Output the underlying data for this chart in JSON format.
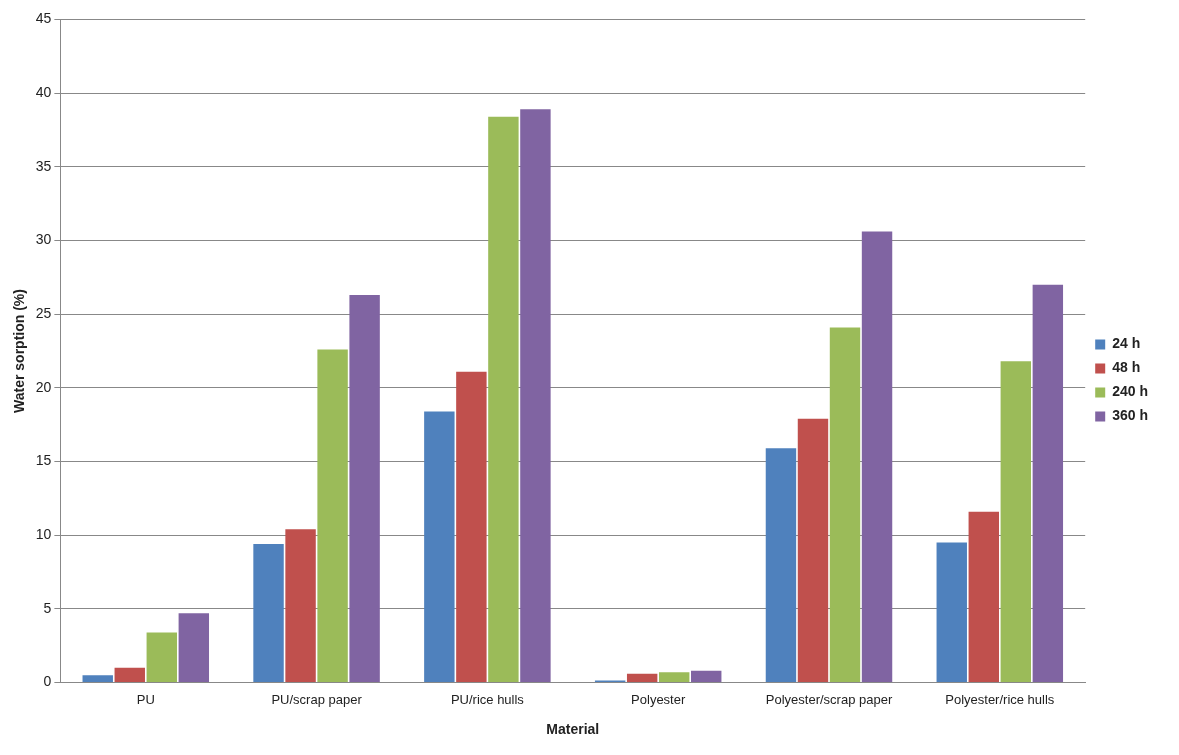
{
  "chart_data": {
    "type": "bar",
    "xlabel": "Material",
    "ylabel": "Water sorption (%)",
    "categories": [
      "PU",
      "PU/scrap paper",
      "PU/rice hulls",
      "Polyester",
      "Polyester/scrap paper",
      "Polyester/rice hulls"
    ],
    "series": [
      {
        "name": "24 h",
        "color": "#4f81bd",
        "values": [
          0.5,
          9.4,
          18.4,
          0.15,
          15.9,
          9.5
        ]
      },
      {
        "name": "48 h",
        "color": "#c0504d",
        "values": [
          1.0,
          10.4,
          21.1,
          0.6,
          17.9,
          11.6
        ]
      },
      {
        "name": "240 h",
        "color": "#9bbb59",
        "values": [
          3.4,
          22.6,
          38.4,
          0.7,
          24.1,
          21.8
        ]
      },
      {
        "name": "360 h",
        "color": "#8064a2",
        "values": [
          4.7,
          26.3,
          38.9,
          0.8,
          30.6,
          27.0
        ]
      }
    ],
    "ylim": [
      0,
      45
    ],
    "yticks": [
      0,
      5,
      10,
      15,
      20,
      25,
      30,
      35,
      40,
      45
    ],
    "grid": "y",
    "legend": "right"
  }
}
